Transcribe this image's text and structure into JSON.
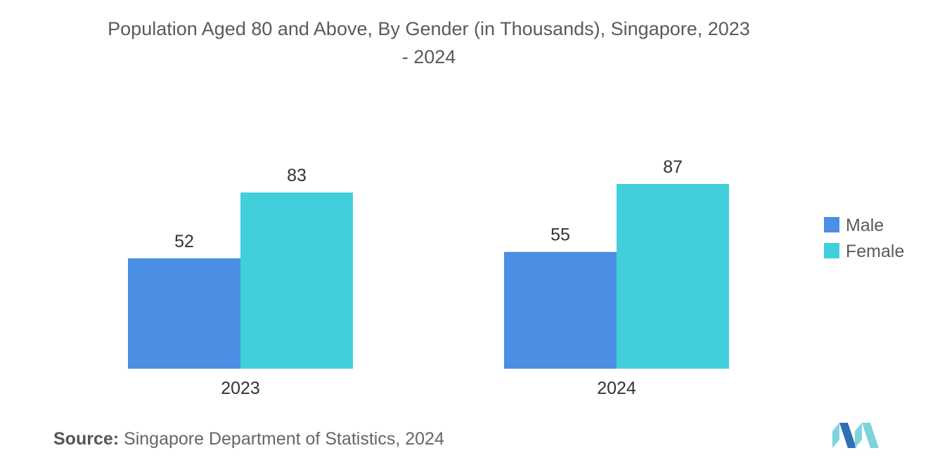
{
  "chart_data": {
    "type": "bar",
    "title_lines": [
      "Population Aged 80 and Above, By Gender (in Thousands), Singapore, 2023",
      "- 2024"
    ],
    "categories": [
      "2023",
      "2024"
    ],
    "series": [
      {
        "name": "Male",
        "values": [
          52,
          55
        ],
        "color": "#4a8fe3"
      },
      {
        "name": "Female",
        "values": [
          83,
          87
        ],
        "color": "#41d0db"
      }
    ],
    "ylim": [
      0,
      87
    ],
    "xlabel": "",
    "ylabel": "",
    "grid": false,
    "legend_position": "right"
  },
  "source": {
    "label": "Source:",
    "text": "Singapore Department of Statistics, 2024"
  },
  "logo_colors": {
    "light": "#7fd3dc",
    "dark": "#2f6fb3"
  }
}
